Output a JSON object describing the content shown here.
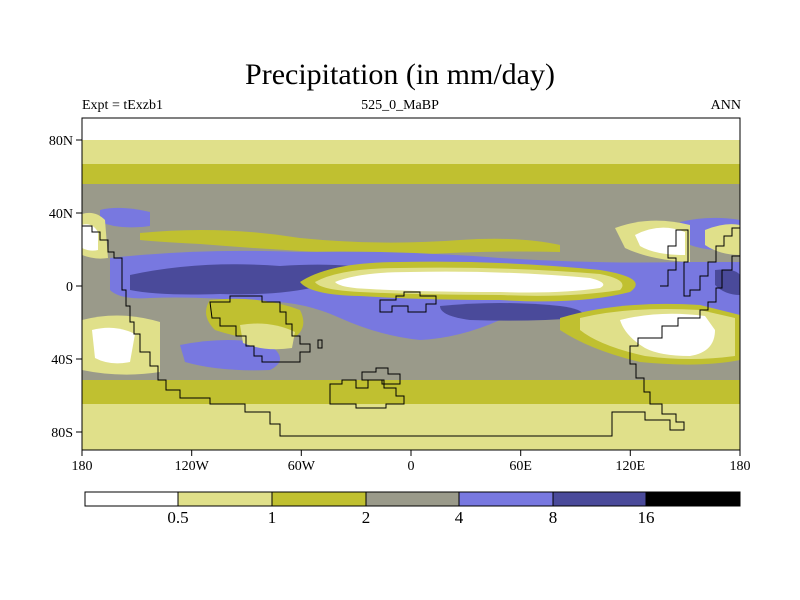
{
  "title": "Precipitation (in mm/day)",
  "left_label": "Expt = tExzb1",
  "center_label": "525_0_MaBP",
  "right_label": "ANN",
  "x_ticks": [
    "180",
    "120W",
    "60W",
    "0",
    "60E",
    "120E",
    "180"
  ],
  "y_ticks": [
    "80N",
    "40N",
    "0",
    "40S",
    "80S"
  ],
  "colorbar": {
    "levels": [
      "0.5",
      "1",
      "2",
      "4",
      "8",
      "16"
    ],
    "colors": [
      "#ffffff",
      "#e0e08a",
      "#c0c030",
      "#9a9a8a",
      "#7878e0",
      "#4a4a9a",
      "#000000"
    ]
  },
  "palette": {
    "white": "#ffffff",
    "pale": "#e0e08a",
    "olive": "#c0c030",
    "gray": "#9a9a8a",
    "blue": "#7878e0",
    "navy": "#4a4a9a"
  }
}
